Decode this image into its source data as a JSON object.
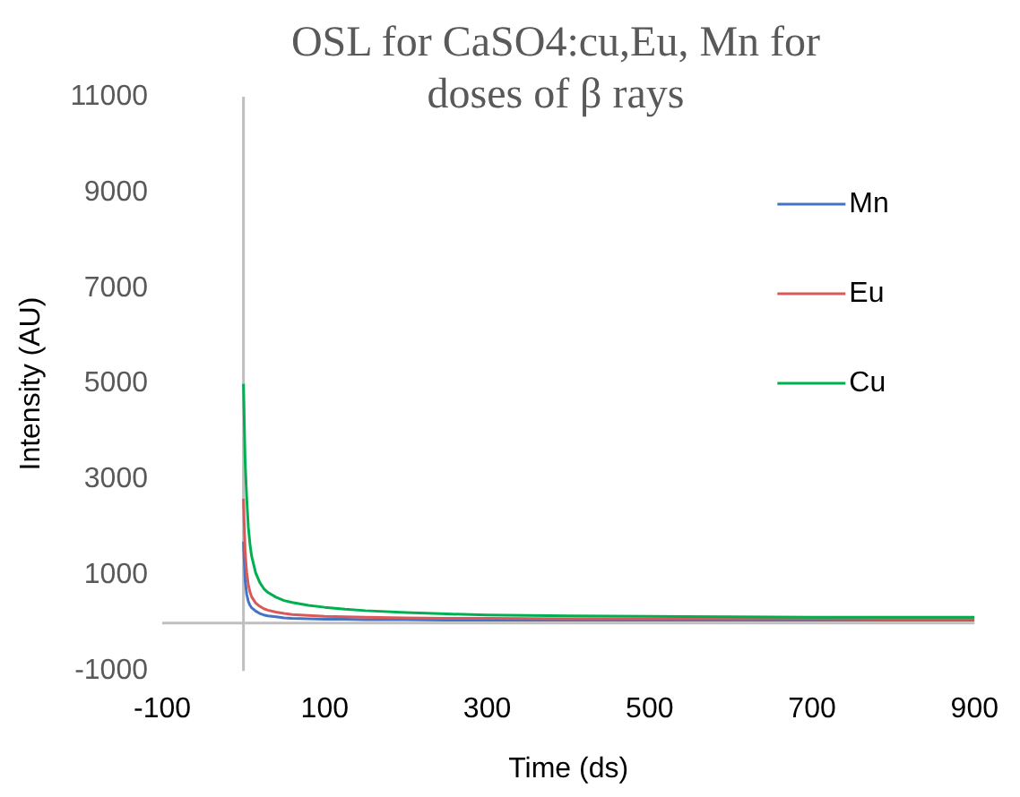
{
  "chart_data": {
    "type": "line",
    "title": "OSL for CaSO4:cu,Eu, Mn for doses of β rays",
    "xlabel": "Time (ds)",
    "ylabel": "Intensity (AU)",
    "x": [
      0,
      2,
      4,
      6,
      8,
      10,
      15,
      20,
      25,
      30,
      40,
      50,
      60,
      80,
      100,
      125,
      150,
      200,
      250,
      300,
      400,
      500,
      600,
      700,
      800,
      900
    ],
    "series": [
      {
        "name": "Mn",
        "color": "#4472c4",
        "values": [
          1700,
          900,
          600,
          450,
          370,
          320,
          250,
          200,
          170,
          150,
          130,
          110,
          100,
          90,
          80,
          80,
          70,
          70,
          60,
          60,
          60,
          60,
          60,
          60,
          60,
          60
        ]
      },
      {
        "name": "Eu",
        "color": "#d9595a",
        "values": [
          2600,
          1500,
          1050,
          800,
          650,
          550,
          420,
          350,
          300,
          270,
          230,
          200,
          180,
          160,
          140,
          130,
          120,
          110,
          100,
          100,
          90,
          90,
          90,
          90,
          80,
          80
        ]
      },
      {
        "name": "Cu",
        "color": "#00b050",
        "values": [
          5000,
          3400,
          2600,
          2000,
          1650,
          1400,
          1050,
          850,
          720,
          640,
          540,
          470,
          430,
          370,
          330,
          290,
          260,
          220,
          190,
          170,
          150,
          140,
          130,
          120,
          120,
          120
        ]
      }
    ],
    "xlim": [
      -100,
      900
    ],
    "xticks": [
      -100,
      100,
      300,
      500,
      700,
      900
    ],
    "ylim": [
      -1000,
      11000
    ],
    "yticks": [
      -1000,
      1000,
      3000,
      5000,
      7000,
      9000,
      11000
    ],
    "grid": false,
    "legend": "right"
  }
}
